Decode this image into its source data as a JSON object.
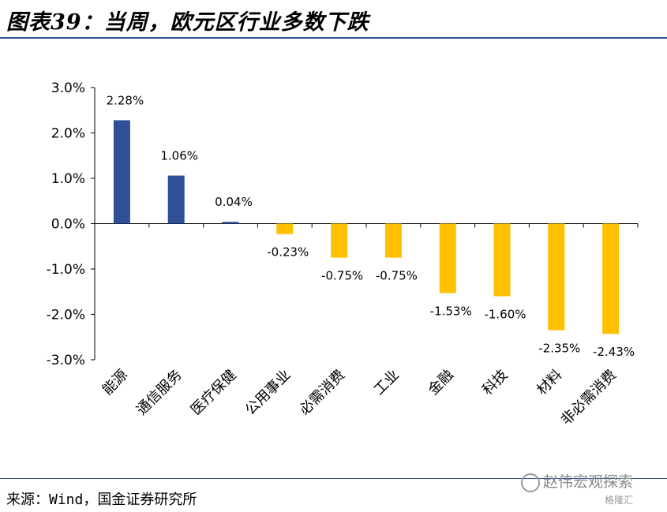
{
  "header": {
    "title": "图表39：当周，欧元区行业多数下跌"
  },
  "footer": {
    "source": "来源：Wind，国金证券研究所"
  },
  "watermark": {
    "text": "赵伟宏观探索",
    "subtext": "格隆汇"
  },
  "colors": {
    "positive": "#2f4f96",
    "negative": "#ffc000",
    "rule": "#2f4f8f"
  },
  "chart_data": {
    "type": "bar",
    "title": "",
    "xlabel": "",
    "ylabel": "",
    "categories": [
      "能源",
      "通信服务",
      "医疗保健",
      "公用事业",
      "必需消费",
      "工业",
      "金融",
      "科技",
      "材料",
      "非必需消费"
    ],
    "values": [
      2.28,
      1.06,
      0.04,
      -0.23,
      -0.75,
      -0.75,
      -1.53,
      -1.6,
      -2.35,
      -2.43
    ],
    "value_labels": [
      "2.28%",
      "1.06%",
      "0.04%",
      "-0.23%",
      "-0.75%",
      "-0.75%",
      "-1.53%",
      "-1.60%",
      "-2.35%",
      "-2.43%"
    ],
    "ylim": [
      -3.0,
      3.0
    ],
    "yticks": [
      3.0,
      2.0,
      1.0,
      0.0,
      -1.0,
      -2.0,
      -3.0
    ],
    "ytick_labels": [
      "3.0%",
      "2.0%",
      "1.0%",
      "0.0%",
      "-1.0%",
      "-2.0%",
      "-3.0%"
    ],
    "grid": false,
    "legend": "none"
  }
}
